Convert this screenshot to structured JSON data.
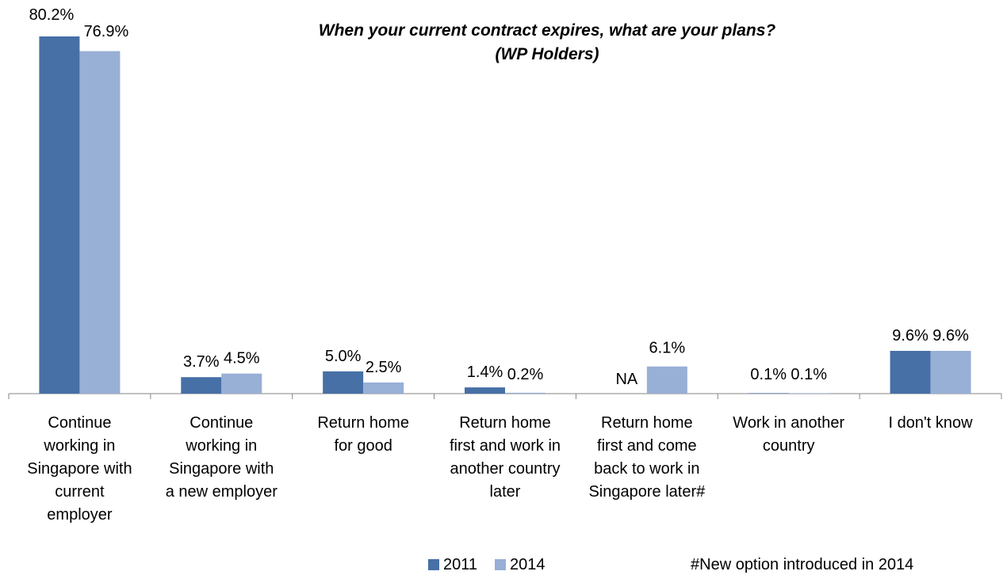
{
  "colors": {
    "s2011": "#4670A6",
    "s2014": "#98AFD6",
    "axis": "#868686"
  },
  "chart_data": {
    "type": "bar",
    "title_lines": [
      "When your current contract expires, what are your plans?",
      "(WP Holders)"
    ],
    "categories": [
      [
        "Continue",
        "working in",
        "Singapore with",
        "current",
        "employer"
      ],
      [
        "Continue",
        "working in",
        "Singapore with",
        "a new employer"
      ],
      [
        "Return home",
        "for good"
      ],
      [
        "Return home",
        "first and work in",
        "another country",
        "later"
      ],
      [
        "Return home",
        "first and come",
        "back to work in",
        "Singapore later#"
      ],
      [
        "Work in another",
        "country"
      ],
      [
        "I don't know"
      ]
    ],
    "series": [
      {
        "name": "2011",
        "values": [
          80.2,
          3.7,
          5.0,
          1.4,
          null,
          0.1,
          9.6
        ],
        "labels": [
          "80.2%",
          "3.7%",
          "5.0%",
          "1.4%",
          "NA",
          "0.1%",
          "9.6%"
        ]
      },
      {
        "name": "2014",
        "values": [
          76.9,
          4.5,
          2.5,
          0.2,
          6.1,
          0.1,
          9.6
        ],
        "labels": [
          "76.9%",
          "4.5%",
          "2.5%",
          "0.2%",
          "6.1%",
          "0.1%",
          "9.6%"
        ]
      }
    ],
    "ylim": [
      0,
      80.2
    ],
    "legend": "bottom",
    "grid": false
  },
  "footnote": "#New option introduced in 2014"
}
